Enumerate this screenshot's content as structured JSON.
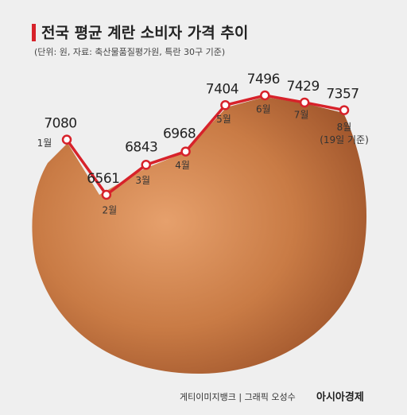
{
  "chart_data": {
    "type": "line",
    "title": "전국 평균 계란 소비자 가격 추이",
    "subtitle": "(단위: 원, 자료: 축산물품질평가원, 특란 30구 기준)",
    "categories": [
      "1월",
      "2월",
      "3월",
      "4월",
      "5월",
      "6월",
      "7월",
      "8월"
    ],
    "values": [
      7080,
      6561,
      6843,
      6968,
      7404,
      7496,
      7429,
      7357
    ],
    "color": "#d7222a",
    "annotations": [
      "(19일 기준)"
    ],
    "credits": [
      "게티이미지뱅크 | 그래픽 오성수",
      "아시아경제"
    ]
  }
}
